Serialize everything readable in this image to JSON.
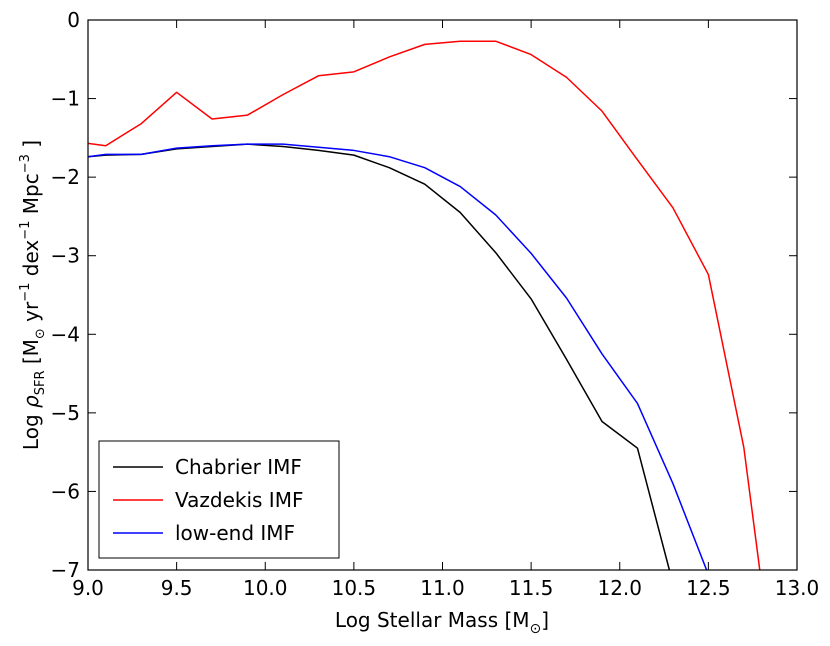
{
  "chart_data": {
    "type": "line",
    "title": "",
    "xlabel": {
      "prefix": "Log Stellar Mass [M",
      "sub": "⊙",
      "suffix": "]"
    },
    "ylabel": {
      "p1": "Log ",
      "rho": "ρ",
      "sfr": "SFR",
      "p2": " [M",
      "sun": "⊙",
      "p3": " yr",
      "exp1": "−1",
      "p4": " dex",
      "exp2": "−1",
      "p5": " Mpc",
      "exp3": "−3",
      "p6": " ]"
    },
    "xlim": [
      9.0,
      13.0
    ],
    "ylim": [
      -7,
      0
    ],
    "xticks": [
      9.0,
      9.5,
      10.0,
      10.5,
      11.0,
      11.5,
      12.0,
      12.5,
      13.0
    ],
    "xtick_labels": [
      "9.0",
      "9.5",
      "10.0",
      "10.5",
      "11.0",
      "11.5",
      "12.0",
      "12.5",
      "13.0"
    ],
    "yticks": [
      0,
      -1,
      -2,
      -3,
      -4,
      -5,
      -6,
      -7
    ],
    "ytick_labels": [
      "0",
      "−1",
      "−2",
      "−3",
      "−4",
      "−5",
      "−6",
      "−7"
    ],
    "legend_position": "lower-left",
    "series": [
      {
        "name": "Chabrier IMF",
        "color": "#000000",
        "x": [
          9.0,
          9.1,
          9.3,
          9.5,
          9.7,
          9.9,
          10.1,
          10.3,
          10.5,
          10.7,
          10.9,
          11.1,
          11.3,
          11.5,
          11.7,
          11.9,
          12.1,
          12.28
        ],
        "y": [
          -1.74,
          -1.72,
          -1.71,
          -1.64,
          -1.61,
          -1.58,
          -1.61,
          -1.66,
          -1.72,
          -1.88,
          -2.09,
          -2.45,
          -2.96,
          -3.55,
          -4.32,
          -5.11,
          -5.45,
          -7.0
        ]
      },
      {
        "name": "Vazdekis IMF",
        "color": "#ff0000",
        "x": [
          9.0,
          9.1,
          9.3,
          9.5,
          9.7,
          9.9,
          10.1,
          10.3,
          10.5,
          10.7,
          10.9,
          11.1,
          11.3,
          11.5,
          11.7,
          11.9,
          12.1,
          12.3,
          12.5,
          12.7,
          12.79
        ],
        "y": [
          -1.57,
          -1.6,
          -1.32,
          -0.92,
          -1.26,
          -1.21,
          -0.95,
          -0.71,
          -0.66,
          -0.47,
          -0.31,
          -0.27,
          -0.27,
          -0.44,
          -0.73,
          -1.16,
          -1.78,
          -2.39,
          -3.24,
          -5.44,
          -7.0
        ]
      },
      {
        "name": "low-end IMF",
        "color": "#0000ff",
        "x": [
          9.0,
          9.1,
          9.3,
          9.5,
          9.7,
          9.9,
          10.1,
          10.3,
          10.5,
          10.7,
          10.9,
          11.1,
          11.3,
          11.5,
          11.7,
          11.9,
          12.1,
          12.3,
          12.49
        ],
        "y": [
          -1.74,
          -1.71,
          -1.71,
          -1.63,
          -1.6,
          -1.58,
          -1.58,
          -1.62,
          -1.66,
          -1.74,
          -1.88,
          -2.12,
          -2.48,
          -2.97,
          -3.54,
          -4.25,
          -4.88,
          -5.9,
          -7.0
        ]
      }
    ]
  }
}
